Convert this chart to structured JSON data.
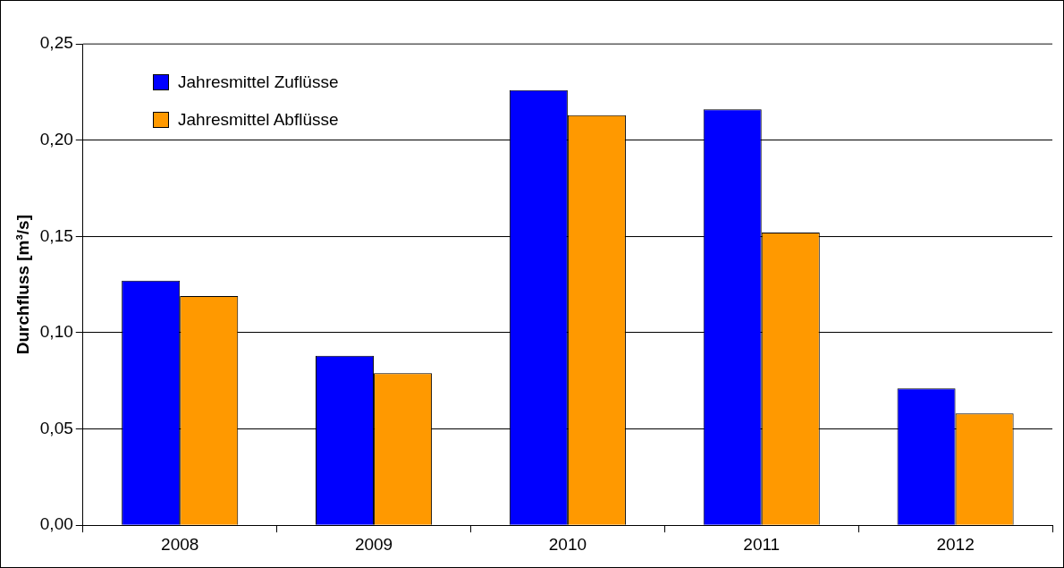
{
  "chart_data": {
    "type": "bar",
    "ylabel": "Durchfluss [m³/s]",
    "categories": [
      "2008",
      "2009",
      "2010",
      "2011",
      "2012"
    ],
    "series": [
      {
        "name": "Jahresmittel Zuflüsse",
        "color": "#0000ff",
        "values": [
          0.127,
          0.088,
          0.226,
          0.216,
          0.071
        ]
      },
      {
        "name": "Jahresmittel Abflüsse",
        "color": "#ff9900",
        "values": [
          0.119,
          0.079,
          0.213,
          0.152,
          0.058
        ]
      }
    ],
    "ylim": [
      0,
      0.25
    ],
    "yticks": [
      {
        "value": 0,
        "label": "0,00"
      },
      {
        "value": 0.05,
        "label": "0,05"
      },
      {
        "value": 0.1,
        "label": "0,10"
      },
      {
        "value": 0.15,
        "label": "0,15"
      },
      {
        "value": 0.2,
        "label": "0,20"
      },
      {
        "value": 0.25,
        "label": "0,25"
      }
    ],
    "grid": "y",
    "legend": "top left"
  }
}
